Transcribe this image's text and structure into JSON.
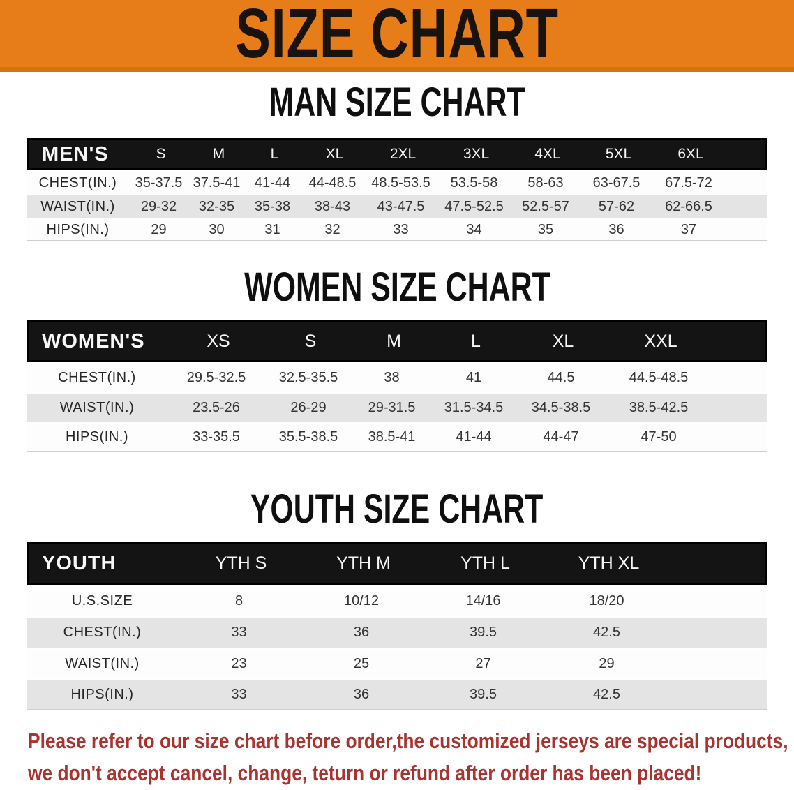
{
  "banner": {
    "title": "SIZE CHART",
    "bg_color": "#e67d18"
  },
  "sections": [
    {
      "heading": "MAN SIZE CHART",
      "table": {
        "header_label": "MEN'S",
        "columns": [
          "S",
          "M",
          "L",
          "XL",
          "2XL",
          "3XL",
          "4XL",
          "5XL",
          "6XL"
        ],
        "rows": [
          {
            "label": "CHEST(IN.)",
            "values": [
              "35-37.5",
              "37.5-41",
              "41-44",
              "44-48.5",
              "48.5-53.5",
              "53.5-58",
              "58-63",
              "63-67.5",
              "67.5-72"
            ]
          },
          {
            "label": "WAIST(IN.)",
            "values": [
              "29-32",
              "32-35",
              "35-38",
              "38-43",
              "43-47.5",
              "47.5-52.5",
              "52.5-57",
              "57-62",
              "62-66.5"
            ]
          },
          {
            "label": "HIPS(IN.)",
            "values": [
              "29",
              "30",
              "31",
              "32",
              "33",
              "34",
              "35",
              "36",
              "37"
            ]
          }
        ]
      }
    },
    {
      "heading": "WOMEN SIZE CHART",
      "table": {
        "header_label": "WOMEN'S",
        "columns": [
          "XS",
          "S",
          "M",
          "L",
          "XL",
          "XXL"
        ],
        "rows": [
          {
            "label": "CHEST(IN.)",
            "values": [
              "29.5-32.5",
              "32.5-35.5",
              "38",
              "41",
              "44.5",
              "44.5-48.5"
            ]
          },
          {
            "label": "WAIST(IN.)",
            "values": [
              "23.5-26",
              "26-29",
              "29-31.5",
              "31.5-34.5",
              "34.5-38.5",
              "38.5-42.5"
            ]
          },
          {
            "label": "HIPS(IN.)",
            "values": [
              "33-35.5",
              "35.5-38.5",
              "38.5-41",
              "41-44",
              "44-47",
              "47-50"
            ]
          }
        ]
      }
    },
    {
      "heading": "YOUTH SIZE CHART",
      "table": {
        "header_label": "YOUTH",
        "columns": [
          "YTH S",
          "YTH M",
          "YTH L",
          "YTH XL"
        ],
        "rows": [
          {
            "label": "U.S.SIZE",
            "values": [
              "8",
              "10/12",
              "14/16",
              "18/20"
            ]
          },
          {
            "label": "CHEST(IN.)",
            "values": [
              "33",
              "36",
              "39.5",
              "42.5"
            ]
          },
          {
            "label": "WAIST(IN.)",
            "values": [
              "23",
              "25",
              "27",
              "29"
            ]
          },
          {
            "label": "HIPS(IN.)",
            "values": [
              "33",
              "36",
              "39.5",
              "42.5"
            ]
          }
        ]
      }
    }
  ],
  "disclaimer": {
    "line1": "Please refer to our size chart before order,the customized jerseys are special products,",
    "line2": "we don't accept cancel, change, teturn or refund after order has been placed!",
    "color": "#a9332e"
  }
}
